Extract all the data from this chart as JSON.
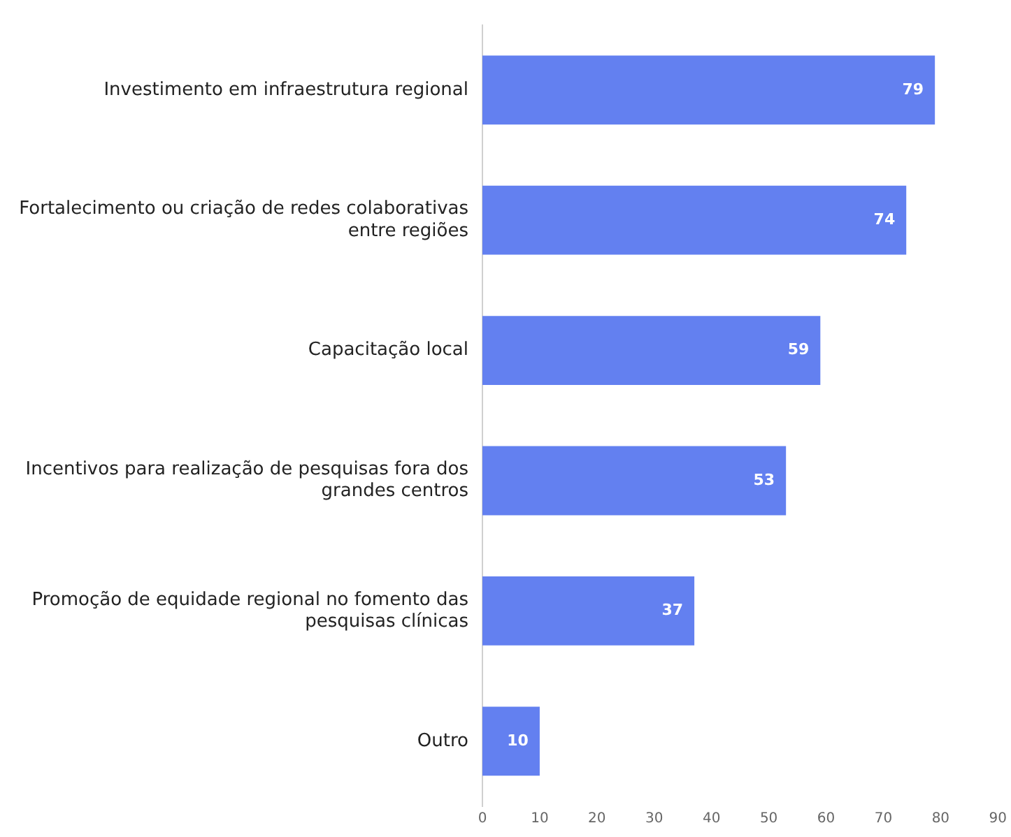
{
  "chart_data": {
    "type": "bar",
    "orientation": "horizontal",
    "categories": [
      "Investimento em infraestrutura regional",
      "Fortalecimento ou criação de redes colaborativas entre regiões",
      "Capacitação local",
      "Incentivos para realização de pesquisas fora dos grandes centros",
      "Promoção de equidade regional no fomento das pesquisas clínicas",
      "Outro"
    ],
    "values": [
      79,
      74,
      59,
      53,
      37,
      10
    ],
    "color": "#6380f0",
    "xlim": [
      0,
      90
    ],
    "xticks": [
      0,
      10,
      20,
      30,
      40,
      50,
      60,
      70,
      80,
      90
    ],
    "grid": false,
    "legend": false,
    "data_labels": true
  }
}
